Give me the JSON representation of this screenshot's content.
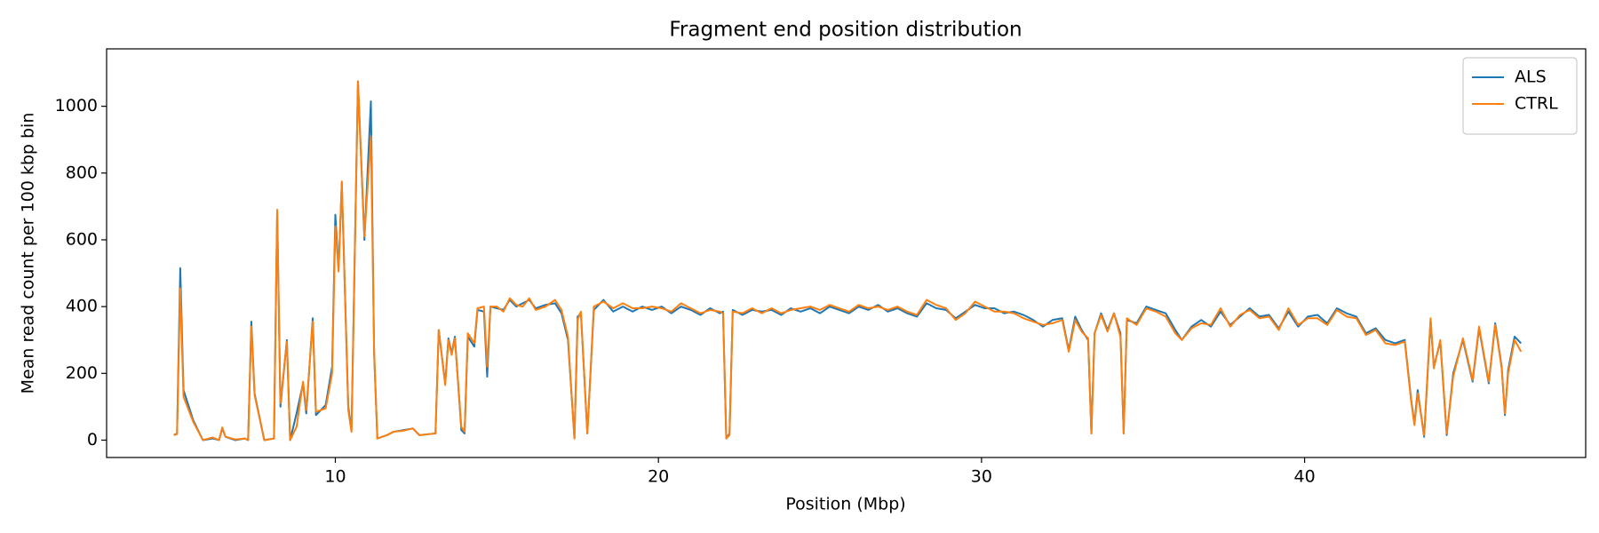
{
  "chart_data": {
    "type": "line",
    "title": "Fragment end position distribution",
    "x_label": "Position (Mbp)",
    "y_label": "Mean read count per 100 kbp bin",
    "x": [
      5.0,
      5.1,
      5.2,
      5.3,
      5.6,
      5.9,
      6.2,
      6.4,
      6.5,
      6.6,
      6.9,
      7.2,
      7.3,
      7.4,
      7.5,
      7.8,
      8.1,
      8.2,
      8.3,
      8.5,
      8.6,
      8.8,
      9.0,
      9.1,
      9.3,
      9.4,
      9.7,
      9.9,
      10.0,
      10.1,
      10.2,
      10.4,
      10.5,
      10.7,
      10.9,
      11.1,
      11.2,
      11.3,
      11.6,
      11.8,
      12.1,
      12.4,
      12.6,
      12.9,
      13.1,
      13.2,
      13.4,
      13.5,
      13.6,
      13.7,
      13.9,
      14.0,
      14.1,
      14.3,
      14.4,
      14.6,
      14.7,
      14.8,
      15.0,
      15.2,
      15.4,
      15.6,
      15.8,
      16.0,
      16.2,
      16.5,
      16.8,
      17.0,
      17.2,
      17.4,
      17.5,
      17.6,
      17.8,
      18.0,
      18.3,
      18.6,
      18.9,
      19.2,
      19.5,
      19.8,
      20.1,
      20.4,
      20.7,
      21.0,
      21.3,
      21.6,
      21.9,
      22.0,
      22.1,
      22.2,
      22.3,
      22.6,
      22.9,
      23.2,
      23.5,
      23.8,
      24.1,
      24.4,
      24.7,
      25.0,
      25.3,
      25.6,
      25.9,
      26.2,
      26.5,
      26.8,
      27.1,
      27.4,
      27.7,
      28.0,
      28.3,
      28.6,
      28.9,
      29.2,
      29.5,
      29.8,
      30.1,
      30.4,
      30.7,
      31.0,
      31.3,
      31.6,
      31.9,
      32.2,
      32.5,
      32.7,
      32.9,
      33.1,
      33.3,
      33.4,
      33.5,
      33.7,
      33.9,
      34.1,
      34.3,
      34.4,
      34.5,
      34.8,
      35.1,
      35.4,
      35.7,
      36.0,
      36.2,
      36.5,
      36.8,
      37.1,
      37.4,
      37.7,
      38.0,
      38.3,
      38.6,
      38.9,
      39.2,
      39.5,
      39.8,
      40.1,
      40.4,
      40.7,
      41.0,
      41.3,
      41.6,
      41.9,
      42.2,
      42.5,
      42.8,
      43.1,
      43.3,
      43.4,
      43.5,
      43.7,
      43.9,
      44.0,
      44.2,
      44.4,
      44.6,
      44.9,
      45.2,
      45.4,
      45.7,
      45.9,
      46.1,
      46.2,
      46.3,
      46.5,
      46.7
    ],
    "series": [
      {
        "name": "ALS",
        "color": "#1f77b4",
        "values": [
          15,
          20,
          515,
          150,
          60,
          0,
          5,
          0,
          35,
          10,
          0,
          5,
          0,
          355,
          140,
          0,
          5,
          685,
          100,
          300,
          0,
          80,
          170,
          80,
          365,
          75,
          105,
          220,
          675,
          510,
          770,
          100,
          30,
          1075,
          600,
          1015,
          260,
          5,
          15,
          25,
          30,
          35,
          15,
          18,
          20,
          330,
          170,
          305,
          260,
          310,
          30,
          20,
          310,
          280,
          390,
          385,
          190,
          400,
          395,
          390,
          420,
          400,
          410,
          420,
          395,
          405,
          410,
          380,
          300,
          5,
          370,
          380,
          20,
          390,
          420,
          385,
          400,
          385,
          400,
          390,
          400,
          380,
          400,
          390,
          375,
          395,
          380,
          385,
          5,
          20,
          390,
          375,
          390,
          385,
          390,
          375,
          395,
          385,
          395,
          380,
          400,
          390,
          380,
          400,
          390,
          405,
          385,
          395,
          380,
          370,
          410,
          395,
          390,
          365,
          385,
          405,
          395,
          395,
          380,
          385,
          375,
          360,
          340,
          360,
          365,
          270,
          370,
          330,
          300,
          20,
          320,
          380,
          330,
          380,
          320,
          20,
          360,
          350,
          400,
          390,
          380,
          330,
          300,
          340,
          360,
          340,
          385,
          345,
          370,
          395,
          370,
          375,
          335,
          385,
          340,
          370,
          375,
          350,
          395,
          380,
          370,
          320,
          335,
          300,
          290,
          300,
          120,
          50,
          150,
          10,
          360,
          220,
          295,
          15,
          200,
          300,
          175,
          335,
          170,
          350,
          220,
          75,
          210,
          310,
          290
        ]
      },
      {
        "name": "CTRL",
        "color": "#ff7f0e",
        "values": [
          15,
          18,
          455,
          130,
          55,
          0,
          8,
          0,
          38,
          10,
          2,
          5,
          0,
          340,
          135,
          0,
          5,
          690,
          110,
          295,
          0,
          40,
          175,
          90,
          355,
          85,
          95,
          200,
          640,
          505,
          775,
          90,
          25,
          1075,
          610,
          910,
          270,
          5,
          15,
          25,
          28,
          35,
          15,
          18,
          20,
          330,
          165,
          300,
          255,
          305,
          40,
          25,
          320,
          290,
          395,
          400,
          220,
          400,
          400,
          385,
          425,
          405,
          400,
          425,
          390,
          400,
          420,
          390,
          310,
          5,
          360,
          385,
          20,
          400,
          415,
          395,
          410,
          395,
          395,
          400,
          395,
          385,
          410,
          395,
          380,
          390,
          385,
          380,
          5,
          15,
          385,
          380,
          395,
          380,
          395,
          380,
          390,
          395,
          400,
          390,
          405,
          395,
          385,
          405,
          395,
          400,
          390,
          400,
          385,
          375,
          420,
          405,
          395,
          360,
          380,
          415,
          400,
          385,
          385,
          380,
          365,
          355,
          345,
          350,
          360,
          265,
          360,
          325,
          305,
          20,
          320,
          375,
          325,
          380,
          310,
          20,
          365,
          345,
          395,
          385,
          370,
          320,
          300,
          335,
          350,
          345,
          395,
          340,
          375,
          390,
          365,
          370,
          330,
          395,
          345,
          365,
          365,
          345,
          390,
          370,
          365,
          315,
          330,
          290,
          285,
          295,
          115,
          45,
          140,
          15,
          365,
          215,
          300,
          20,
          190,
          305,
          180,
          340,
          175,
          345,
          215,
          80,
          200,
          300,
          265
        ]
      }
    ],
    "xlim": [
      2.92,
      48.7
    ],
    "xticks": [
      10,
      20,
      30,
      40
    ],
    "ylim": [
      -52,
      1172
    ],
    "yticks": [
      0,
      200,
      400,
      600,
      800,
      1000
    ],
    "legend": "upper right"
  }
}
